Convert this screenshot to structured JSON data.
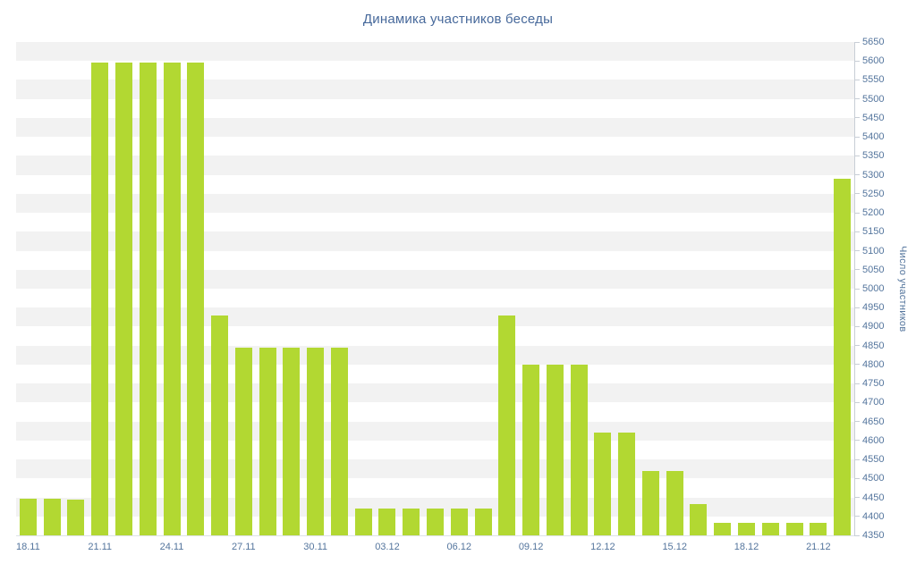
{
  "chart_data": {
    "type": "bar",
    "title": "Динамика участников беседы",
    "xlabel": "",
    "ylabel": "Число участников",
    "ylim": [
      4350,
      5650
    ],
    "ytick_step": 50,
    "x_label_every": 3,
    "grid": "interlaced-horizontal-bands",
    "legend": "none",
    "categories": [
      "18.11",
      "19.11",
      "20.11",
      "21.11",
      "22.11",
      "23.11",
      "24.11",
      "25.11",
      "26.11",
      "27.11",
      "28.11",
      "29.11",
      "30.11",
      "01.12",
      "02.12",
      "03.12",
      "04.12",
      "05.12",
      "06.12",
      "07.12",
      "08.12",
      "09.12",
      "10.12",
      "11.12",
      "12.12",
      "13.12",
      "14.12",
      "15.12",
      "16.12",
      "17.12",
      "18.12",
      "19.12",
      "20.12",
      "21.12",
      "22.12"
    ],
    "values": [
      4447,
      4447,
      4445,
      5595,
      5595,
      5595,
      5595,
      5595,
      4930,
      4845,
      4845,
      4845,
      4845,
      4845,
      4421,
      4421,
      4421,
      4421,
      4421,
      4421,
      4930,
      4800,
      4800,
      4800,
      4620,
      4620,
      4520,
      4520,
      4433,
      4383,
      4383,
      4383,
      4383,
      4383,
      5290
    ],
    "x_axis_labels_shown": [
      "18.11",
      "21.11",
      "24.11",
      "27.11",
      "30.11",
      "03.12",
      "06.12",
      "09.12",
      "12.12",
      "15.12",
      "18.12",
      "21.12"
    ],
    "colors": {
      "bar": "#b2d832",
      "stripe": "#f2f2f2",
      "background": "#ffffff",
      "title_text": "#47699b",
      "axis_text": "#54759d",
      "axis_line": "#c8ced6",
      "baseline": "#dde2e8"
    }
  }
}
